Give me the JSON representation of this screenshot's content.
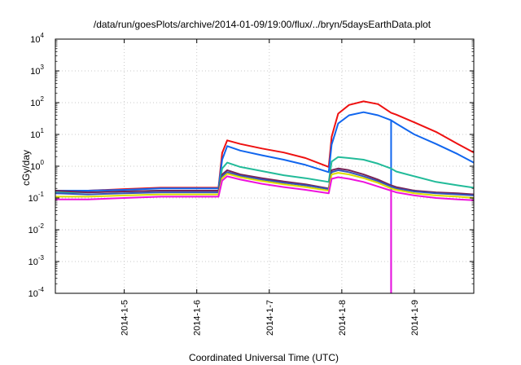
{
  "chart_data": {
    "type": "line",
    "title": "/data/run/goesPlots/archive/2014-01-09/19:00/flux/../bryn/5daysEarthData.plot",
    "xlabel": "Coordinated Universal Time (UTC)",
    "ylabel": "cGy/day",
    "y_scale": "log",
    "ylim": [
      0.0001,
      10000
    ],
    "xlim": [
      4.05,
      9.82
    ],
    "x_unit": "day of 2014-01",
    "grid": true,
    "legend": "none",
    "y_ticks": [
      {
        "mantissa": "10",
        "exp": "-4",
        "value": 0.0001
      },
      {
        "mantissa": "10",
        "exp": "-3",
        "value": 0.001
      },
      {
        "mantissa": "10",
        "exp": "-2",
        "value": 0.01
      },
      {
        "mantissa": "10",
        "exp": "-1",
        "value": 0.1
      },
      {
        "mantissa": "10",
        "exp": "0",
        "value": 1
      },
      {
        "mantissa": "10",
        "exp": "1",
        "value": 10
      },
      {
        "mantissa": "10",
        "exp": "2",
        "value": 100
      },
      {
        "mantissa": "10",
        "exp": "3",
        "value": 1000
      },
      {
        "mantissa": "10",
        "exp": "4",
        "value": 10000
      }
    ],
    "x_ticks": [
      {
        "label": "2014-1-5",
        "value": 5
      },
      {
        "label": "2014-1-6",
        "value": 6
      },
      {
        "label": "2014-1-7",
        "value": 7
      },
      {
        "label": "2014-1-8",
        "value": 8
      },
      {
        "label": "2014-1-9",
        "value": 9
      }
    ],
    "x": [
      4.05,
      4.5,
      5.0,
      5.5,
      6.0,
      6.3,
      6.35,
      6.42,
      6.6,
      6.9,
      7.2,
      7.5,
      7.82,
      7.86,
      7.95,
      8.1,
      8.3,
      8.5,
      8.68,
      8.75,
      9.0,
      9.3,
      9.6,
      9.82
    ],
    "series": [
      {
        "color": "#ee1111",
        "values": [
          0.17,
          0.17,
          0.19,
          0.21,
          0.21,
          0.21,
          2.6,
          6.5,
          5.0,
          3.6,
          2.7,
          1.8,
          0.95,
          8.5,
          45,
          85,
          110,
          90,
          48,
          42,
          24,
          12,
          5.0,
          2.7
        ]
      },
      {
        "color": "#1166ee",
        "values": [
          0.17,
          0.17,
          0.18,
          0.2,
          0.2,
          0.2,
          1.6,
          4.3,
          3.1,
          2.2,
          1.6,
          1.1,
          0.65,
          4.8,
          22,
          40,
          50,
          40,
          28,
          22,
          10,
          5.0,
          2.4,
          1.3
        ],
        "dropout": {
          "x": 8.68,
          "value": 0.0001
        }
      },
      {
        "color": "#22bb99",
        "values": [
          0.15,
          0.15,
          0.16,
          0.17,
          0.17,
          0.17,
          0.85,
          1.3,
          0.95,
          0.7,
          0.52,
          0.42,
          0.32,
          1.4,
          1.95,
          1.8,
          1.6,
          1.2,
          0.85,
          0.68,
          0.48,
          0.32,
          0.25,
          0.21
        ]
      },
      {
        "color": "#772255",
        "values": [
          0.17,
          0.15,
          0.16,
          0.17,
          0.17,
          0.17,
          0.55,
          0.75,
          0.55,
          0.42,
          0.33,
          0.27,
          0.2,
          0.75,
          0.85,
          0.75,
          0.55,
          0.38,
          0.25,
          0.22,
          0.17,
          0.15,
          0.14,
          0.13
        ]
      },
      {
        "color": "#3355bb",
        "values": [
          0.14,
          0.13,
          0.14,
          0.15,
          0.15,
          0.15,
          0.48,
          0.65,
          0.5,
          0.38,
          0.3,
          0.25,
          0.19,
          0.65,
          0.75,
          0.65,
          0.48,
          0.34,
          0.23,
          0.2,
          0.16,
          0.14,
          0.13,
          0.12
        ]
      },
      {
        "color": "#dddd00",
        "values": [
          0.11,
          0.11,
          0.12,
          0.13,
          0.13,
          0.13,
          0.42,
          0.58,
          0.45,
          0.34,
          0.27,
          0.22,
          0.17,
          0.55,
          0.62,
          0.55,
          0.42,
          0.3,
          0.2,
          0.18,
          0.14,
          0.12,
          0.11,
          0.1
        ]
      },
      {
        "color": "#ee11dd",
        "values": [
          0.09,
          0.09,
          0.1,
          0.11,
          0.11,
          0.11,
          0.35,
          0.48,
          0.38,
          0.28,
          0.22,
          0.18,
          0.14,
          0.4,
          0.45,
          0.4,
          0.32,
          0.23,
          0.17,
          0.15,
          0.12,
          0.1,
          0.09,
          0.085
        ],
        "dropout": {
          "x": 8.68,
          "value": 0.0001
        }
      }
    ]
  }
}
